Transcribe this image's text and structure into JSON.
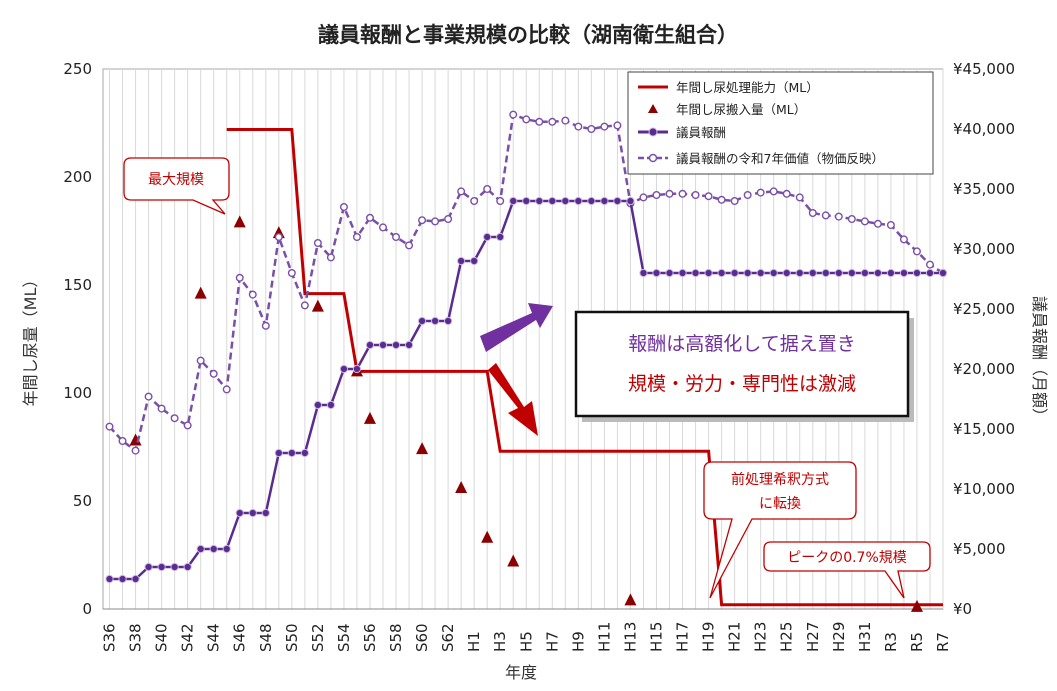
{
  "chart_data": {
    "type": "line",
    "title": "議員報酬と事業規模の比較（湖南衛生組合）",
    "xlabel": "年度",
    "ylabel_left": "年間し尿量（ML）",
    "ylabel_right": "議員報酬（月額）",
    "ylim_left": [
      0,
      250
    ],
    "yticks_left": [
      "0",
      "50",
      "100",
      "150",
      "200",
      "250"
    ],
    "ylim_right": [
      0,
      45000
    ],
    "yticks_right": [
      "¥0",
      "¥5,000",
      "¥10,000",
      "¥15,000",
      "¥20,000",
      "¥25,000",
      "¥30,000",
      "¥35,000",
      "¥40,000",
      "¥45,000"
    ],
    "categories": [
      "S36",
      "S37",
      "S38",
      "S39",
      "S40",
      "S41",
      "S42",
      "S43",
      "S44",
      "S45",
      "S46",
      "S47",
      "S48",
      "S49",
      "S50",
      "S51",
      "S52",
      "S53",
      "S54",
      "S55",
      "S56",
      "S57",
      "S58",
      "S59",
      "S60",
      "S61",
      "S62",
      "S63",
      "H1",
      "H2",
      "H3",
      "H4",
      "H5",
      "H6",
      "H7",
      "H8",
      "H9",
      "H10",
      "H11",
      "H12",
      "H13",
      "H14",
      "H15",
      "H16",
      "H17",
      "H18",
      "H19",
      "H20",
      "H21",
      "H22",
      "H23",
      "H24",
      "H25",
      "H26",
      "H27",
      "H28",
      "H29",
      "H30",
      "H31",
      "R2",
      "R3",
      "R4",
      "R5",
      "R6",
      "R7"
    ],
    "tick_labels": [
      "S36",
      "S38",
      "S40",
      "S42",
      "S44",
      "S46",
      "S48",
      "S50",
      "S52",
      "S54",
      "S56",
      "S58",
      "S60",
      "S62",
      "H1",
      "H3",
      "H5",
      "H7",
      "H9",
      "H11",
      "H13",
      "H15",
      "H17",
      "H19",
      "H21",
      "H23",
      "H25",
      "H27",
      "H29",
      "H31",
      "R3",
      "R5",
      "R7"
    ],
    "grid": true,
    "legend_position": "top-right",
    "series": [
      {
        "name": "年間し尿処理能力（ML）",
        "axis": "left",
        "style": "step-line",
        "color": "#c00000",
        "x": [
          "S45",
          "S50",
          "S51",
          "S54",
          "S55",
          "S59",
          "S60",
          "H2",
          "H3",
          "H19",
          "H20",
          "R7"
        ],
        "values": [
          222,
          222,
          146,
          146,
          110,
          110,
          110,
          110,
          73,
          73,
          2,
          2
        ]
      },
      {
        "name": "年間し尿搬入量（ML）",
        "axis": "left",
        "style": "marker-triangle",
        "color": "#8b0000",
        "x": [
          "S38",
          "S43",
          "S46",
          "S49",
          "S52",
          "S55",
          "S56",
          "S60",
          "S63",
          "H2",
          "H4",
          "H13",
          "R5"
        ],
        "values": [
          78,
          146,
          179,
          174,
          140,
          110,
          88,
          74,
          56,
          33,
          22,
          4,
          1
        ]
      },
      {
        "name": "議員報酬",
        "axis": "right",
        "style": "line-marker",
        "color": "#5b2c8f",
        "values": [
          2500,
          2500,
          2500,
          3500,
          3500,
          3500,
          3500,
          5000,
          5000,
          5000,
          8000,
          8000,
          8000,
          13000,
          13000,
          13000,
          17000,
          17000,
          20000,
          20000,
          22000,
          22000,
          22000,
          22000,
          24000,
          24000,
          24000,
          29000,
          29000,
          31000,
          31000,
          34000,
          34000,
          34000,
          34000,
          34000,
          34000,
          34000,
          34000,
          34000,
          34000,
          28000,
          28000,
          28000,
          28000,
          28000,
          28000,
          28000,
          28000,
          28000,
          28000,
          28000,
          28000,
          28000,
          28000,
          28000,
          28000,
          28000,
          28000,
          28000,
          28000,
          28000,
          28000,
          28000,
          28000
        ]
      },
      {
        "name": "議員報酬の令和7年価値（物価反映）",
        "axis": "right",
        "style": "dashed-line-marker",
        "color": "#7a4fa8",
        "values": [
          15200,
          14000,
          13200,
          17700,
          16700,
          15900,
          15300,
          20700,
          19600,
          18300,
          27600,
          26200,
          23600,
          31000,
          28000,
          25300,
          30500,
          29300,
          33500,
          31000,
          32600,
          31800,
          31000,
          30300,
          32400,
          32300,
          32500,
          34800,
          34000,
          35000,
          34000,
          41200,
          40800,
          40600,
          40600,
          40700,
          40200,
          40000,
          40200,
          40300,
          33800,
          34300,
          34500,
          34600,
          34600,
          34500,
          34400,
          34100,
          34000,
          34500,
          34700,
          34800,
          34600,
          34300,
          33000,
          32800,
          32700,
          32500,
          32300,
          32100,
          32000,
          30800,
          29800,
          28700,
          28000
        ]
      }
    ],
    "annotations": {
      "max_scale": "最大規模",
      "conversion_line1": "前処理希釈方式",
      "conversion_line2": "に転換",
      "peak_ratio": "ピークの0.7%規模",
      "message_line1": "報酬は高額化して据え置き",
      "message_line2": "規模・労力・専門性は激減"
    }
  }
}
